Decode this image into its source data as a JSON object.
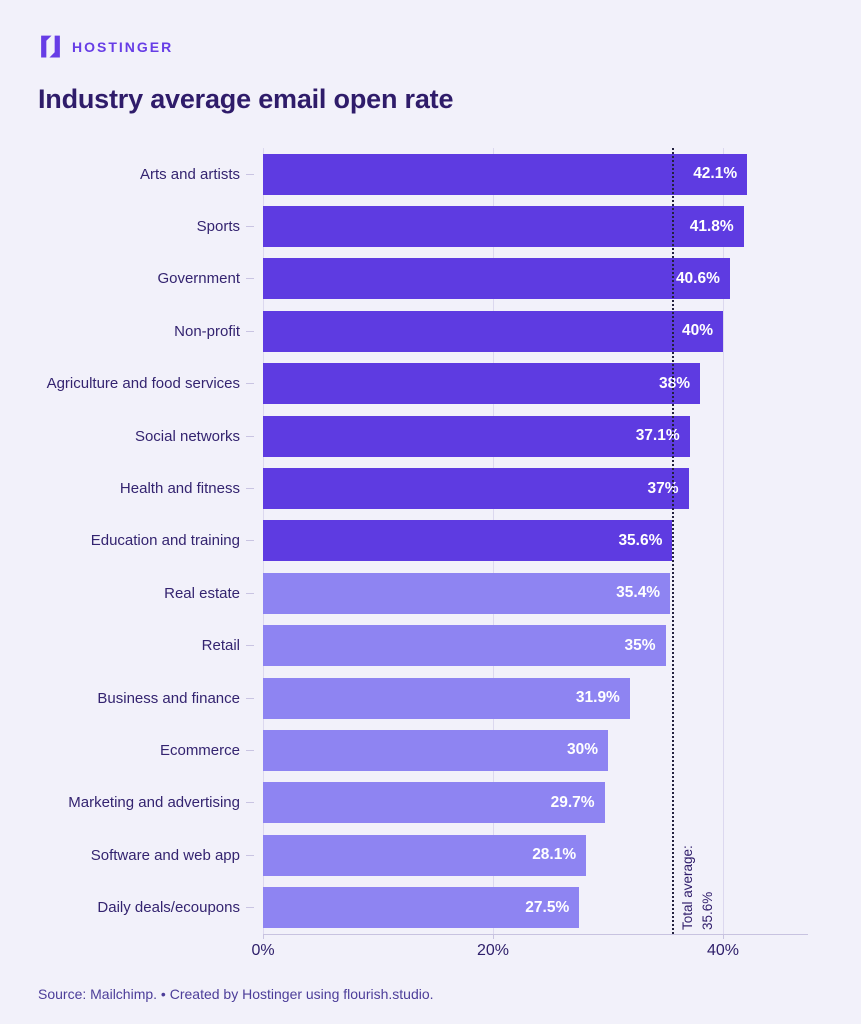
{
  "page": {
    "background": "#f2f1fa"
  },
  "header": {
    "logo_text": "HOSTINGER",
    "title": "Industry average email open rate"
  },
  "chart_data": {
    "type": "bar",
    "orientation": "horizontal",
    "title": "Industry average email open rate",
    "categories": [
      "Arts and artists",
      "Sports",
      "Government",
      "Non-profit",
      "Agriculture and food services",
      "Social networks",
      "Health and fitness",
      "Education and training",
      "Real estate",
      "Retail",
      "Business and finance",
      "Ecommerce",
      "Marketing and advertising",
      "Software and web app",
      "Daily deals/ecoupons"
    ],
    "values": [
      42.1,
      41.8,
      40.6,
      40,
      38,
      37.1,
      37,
      35.6,
      35.4,
      35,
      31.9,
      30,
      29.7,
      28.1,
      27.5
    ],
    "value_labels": [
      "42.1%",
      "41.8%",
      "40.6%",
      "40%",
      "38%",
      "37.1%",
      "37%",
      "35.6%",
      "35.4%",
      "35%",
      "31.9%",
      "30%",
      "29.7%",
      "28.1%",
      "27.5%"
    ],
    "x_axis": {
      "tick_labels": [
        "0%",
        "20%",
        "40%"
      ],
      "tick_values": [
        0,
        20,
        40
      ],
      "unit": "%"
    },
    "average": {
      "value": 35.6,
      "label_line1": "Total average:",
      "label_line2": "35.6%"
    },
    "legend": "none",
    "grid": "vertical",
    "colors": {
      "above_average_bar": "#5e3be1",
      "below_average_bar": "#8e84f2",
      "value_text": "#ffffff",
      "average_line": "#23213f",
      "gridline": "#dcd8ef",
      "background": "#f2f1fa",
      "title_text": "#2f1c6a",
      "brand_purple": "#673de6"
    }
  },
  "footer": {
    "source": "Source: Mailchimp. • Created by Hostinger using flourish.studio."
  }
}
